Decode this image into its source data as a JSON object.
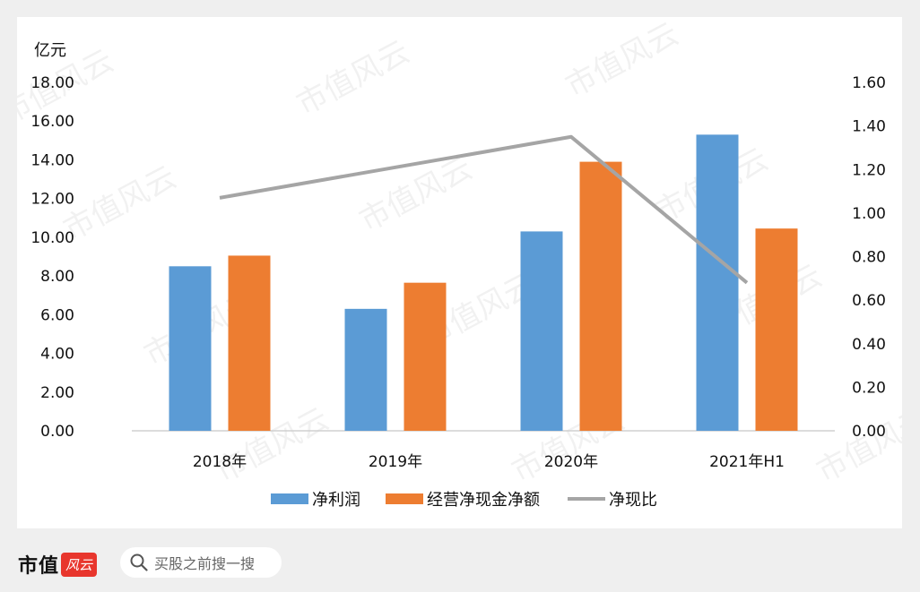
{
  "chart_data": {
    "type": "bar",
    "categories": [
      "2018年",
      "2019年",
      "2020年",
      "2021年H1"
    ],
    "series": [
      {
        "name": "净利润",
        "kind": "bar",
        "axis": "left",
        "color": "#5b9bd5",
        "values": [
          8.5,
          6.3,
          10.3,
          15.3
        ]
      },
      {
        "name": "经营净现金净额",
        "kind": "bar",
        "axis": "left",
        "color": "#ed7d31",
        "values": [
          9.05,
          7.65,
          13.9,
          10.45
        ]
      },
      {
        "name": "净现比",
        "kind": "line",
        "axis": "right",
        "color": "#a5a5a5",
        "values": [
          1.07,
          1.21,
          1.35,
          0.68
        ]
      }
    ],
    "ylabel": "亿元",
    "y_left_ticks": [
      "0.00",
      "2.00",
      "4.00",
      "6.00",
      "8.00",
      "10.00",
      "12.00",
      "14.00",
      "16.00",
      "18.00"
    ],
    "y_left_lim": [
      0,
      18
    ],
    "y_right_ticks": [
      "0.00",
      "0.20",
      "0.40",
      "0.60",
      "0.80",
      "1.00",
      "1.20",
      "1.40",
      "1.60"
    ],
    "y_right_lim": [
      0,
      1.6
    ],
    "grid": false,
    "legend": "bottom"
  },
  "watermark": "市值风云",
  "footer": {
    "logo_text": "市值",
    "logo_seal": "风云",
    "search_placeholder": "买股之前搜一搜"
  }
}
